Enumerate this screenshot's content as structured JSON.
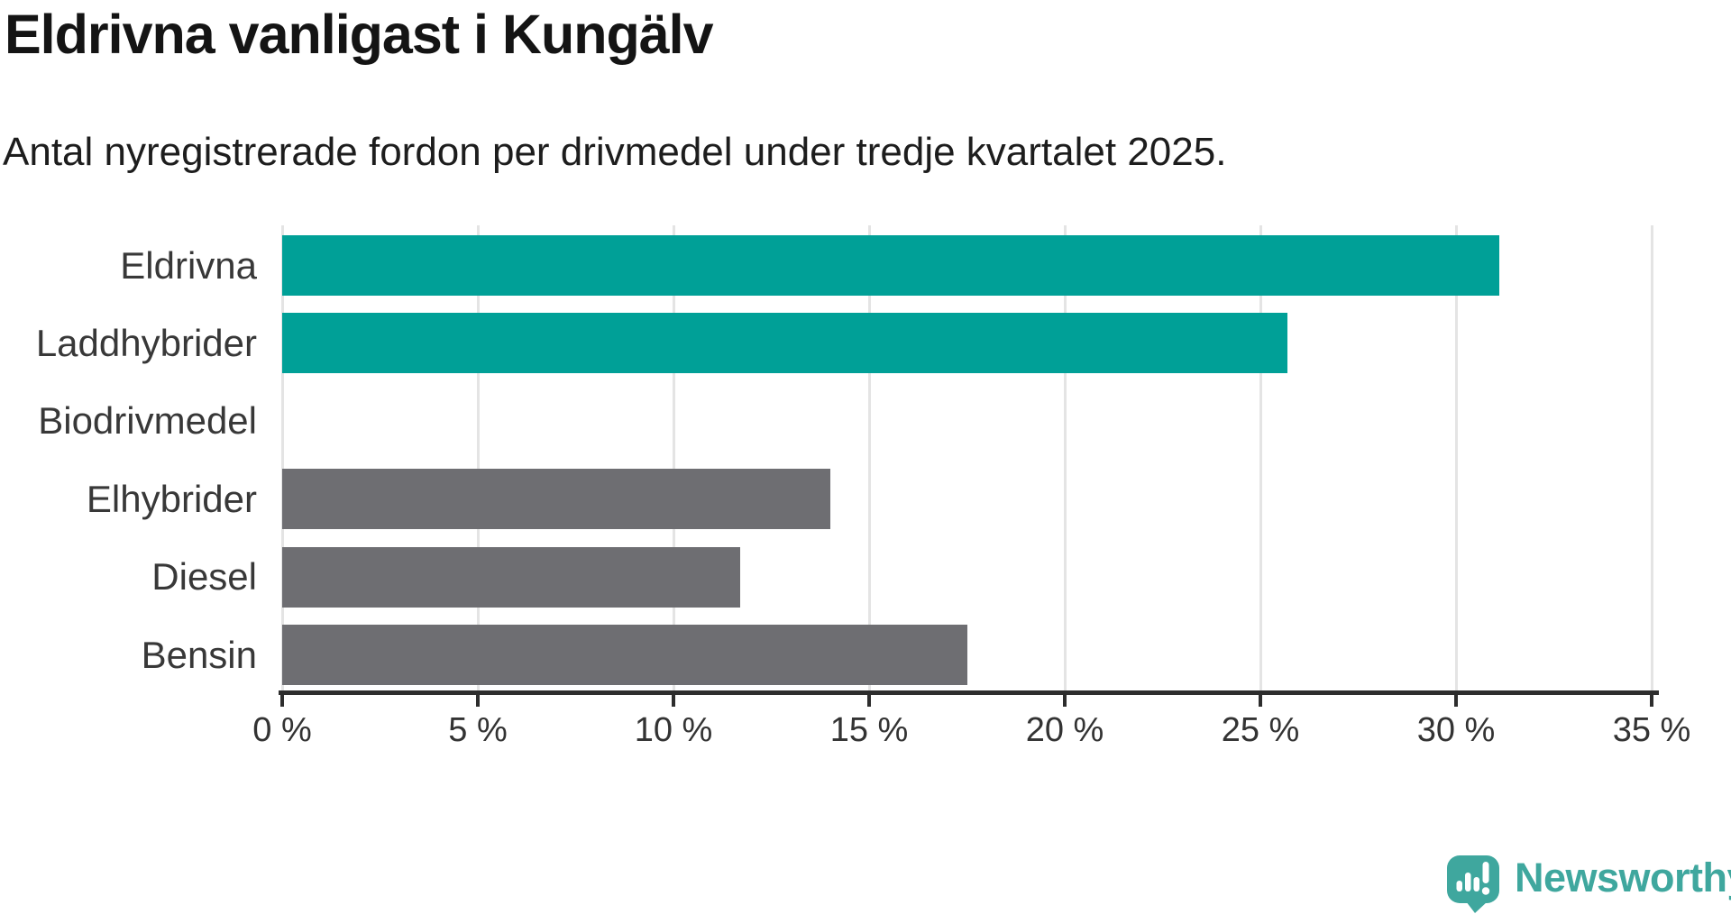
{
  "header": {
    "title": "Eldrivna vanligast i Kungälv",
    "subtitle": "Antal nyregistrerade fordon per drivmedel under tredje kvartalet 2025."
  },
  "chart_data": {
    "type": "bar",
    "orientation": "horizontal",
    "title": "Eldrivna vanligast i Kungälv",
    "subtitle": "Antal nyregistrerade fordon per drivmedel under tredje kvartalet 2025.",
    "categories": [
      "Eldrivna",
      "Laddhybrider",
      "Biodrivmedel",
      "Elhybrider",
      "Diesel",
      "Bensin"
    ],
    "values": [
      31.1,
      25.7,
      0,
      14.0,
      11.7,
      17.5
    ],
    "unit": "%",
    "xlim": [
      0,
      35
    ],
    "x_ticks": [
      0,
      5,
      10,
      15,
      20,
      25,
      30,
      35
    ],
    "x_tick_labels": [
      "0 %",
      "5 %",
      "10 %",
      "15 %",
      "20 %",
      "25 %",
      "30 %",
      "35 %"
    ],
    "bar_colors": [
      "#00a097",
      "#00a097",
      "#6e6e72",
      "#6e6e72",
      "#6e6e72",
      "#6e6e72"
    ],
    "grid": true,
    "legend": "none"
  },
  "colors": {
    "highlight_teal": "#00a097",
    "neutral_gray": "#6e6e72",
    "gridline": "#e4e4e4",
    "axis": "#2d2d2d",
    "logo_teal": "#3fa79e"
  },
  "branding": {
    "logo_text": "Newsworthy",
    "logo_icon": "newsworthy-speech-bubble-chart-icon"
  }
}
